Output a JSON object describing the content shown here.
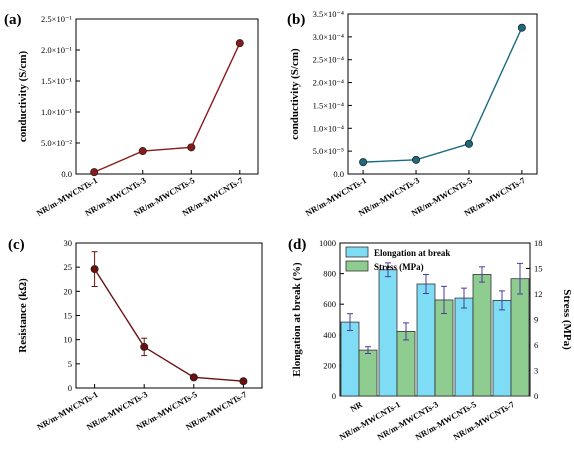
{
  "chart_data": [
    {
      "type": "line",
      "panel_label": "(a)",
      "ylabel": "conductivity (S/cm)",
      "categories": [
        "NR/m-MWCNTs-1",
        "NR/m-MWCNTs-3",
        "NR/m-MWCNTs-5",
        "NR/m-MWCNTs-7"
      ],
      "values": [
        0.003,
        0.037,
        0.043,
        0.211
      ],
      "ylim": [
        0,
        0.25
      ],
      "yticks": [
        0,
        0.05,
        0.1,
        0.15,
        0.2,
        0.25
      ],
      "ytick_labels": [
        "0.0",
        "5.0×10⁻²",
        "1.0×10⁻¹",
        "1.5×10⁻¹",
        "2.0×10⁻¹",
        "2.5×10⁻¹"
      ],
      "color": "#8b1a1a",
      "marker": "circle",
      "grid": false
    },
    {
      "type": "line",
      "panel_label": "(b)",
      "ylabel": "conductivity (S/cm)",
      "categories": [
        "NR/m-MWCNTs-1",
        "NR/m-MWCNTs-3",
        "NR/m-MWCNTs-5",
        "NR/m-MWCNTs-7"
      ],
      "values": [
        2.6e-05,
        3.1e-05,
        6.6e-05,
        0.00032
      ],
      "ylim": [
        0,
        0.00035
      ],
      "yticks": [
        0,
        5e-05,
        0.0001,
        0.00015,
        0.0002,
        0.00025,
        0.0003,
        0.00035
      ],
      "ytick_labels": [
        "0.0",
        "5.0×10⁻⁵",
        "1.0×10⁻⁴",
        "1.5×10⁻⁴",
        "2.0×10⁻⁴",
        "2.5×10⁻⁴",
        "3.0×10⁻⁴",
        "3.5×10⁻⁴"
      ],
      "color": "#1a6b7f",
      "marker": "circle",
      "grid": false
    },
    {
      "type": "line",
      "panel_label": "(c)",
      "ylabel": "Resistance (kΩ)",
      "categories": [
        "NR/m-MWCNTs-1",
        "NR/m-MWCNTs-3",
        "NR/m-MWCNTs-5",
        "NR/m-MWCNTs-7"
      ],
      "values": [
        24.6,
        8.5,
        2.2,
        1.4
      ],
      "errors": [
        3.6,
        1.8,
        0,
        0
      ],
      "ylim": [
        0,
        30
      ],
      "yticks": [
        0,
        5,
        10,
        15,
        20,
        25,
        30
      ],
      "ytick_labels": [
        "0",
        "5",
        "10",
        "15",
        "20",
        "25",
        "30"
      ],
      "color": "#6b0f0f",
      "marker": "circle",
      "grid": false
    },
    {
      "type": "bar",
      "panel_label": "(d)",
      "categories": [
        "NR",
        "NR/m-MWCNTs-1",
        "NR/m-MWCNTs-3",
        "NR/m-MWCNTs-5",
        "NR/m-MWCNTs-7"
      ],
      "series": [
        {
          "name": "Elongation at break",
          "axis": "left",
          "values": [
            483,
            825,
            732,
            640,
            625
          ],
          "errors": [
            55,
            45,
            62,
            65,
            62
          ],
          "color": "#7fdcf5"
        },
        {
          "name": "Stress (MPa)",
          "axis": "right",
          "values": [
            5.4,
            7.6,
            11.3,
            14.3,
            13.8
          ],
          "errors": [
            0.4,
            1.0,
            1.6,
            0.9,
            1.8
          ],
          "color": "#8fcc8f"
        }
      ],
      "ylabel_left": "Elongation at break (%)",
      "ylabel_right": "Stress (MPa)",
      "ylim_left": [
        0,
        1000
      ],
      "ylim_right": [
        0,
        18
      ],
      "yticks_left": [
        0,
        200,
        400,
        600,
        800,
        1000
      ],
      "ytick_labels_left": [
        "0",
        "200",
        "400",
        "600",
        "800",
        "1000"
      ],
      "yticks_right": [
        0,
        3,
        6,
        9,
        12,
        15,
        18
      ],
      "ytick_labels_right": [
        "0",
        "3",
        "6",
        "9",
        "12",
        "15",
        "18"
      ],
      "legend_position": "top-left",
      "grid": false
    }
  ]
}
